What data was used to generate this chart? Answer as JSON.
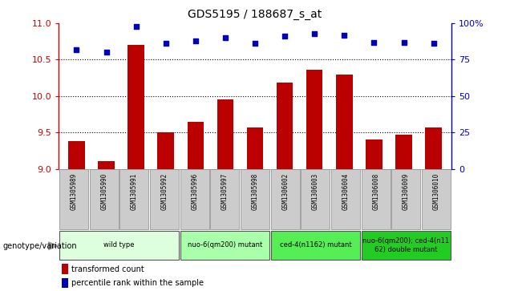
{
  "title": "GDS5195 / 188687_s_at",
  "samples": [
    "GSM1305989",
    "GSM1305990",
    "GSM1305991",
    "GSM1305992",
    "GSM1305996",
    "GSM1305997",
    "GSM1305998",
    "GSM1306002",
    "GSM1306003",
    "GSM1306004",
    "GSM1306008",
    "GSM1306009",
    "GSM1306010"
  ],
  "transformed_count": [
    9.38,
    9.1,
    10.7,
    9.5,
    9.65,
    9.95,
    9.57,
    10.18,
    10.36,
    10.3,
    9.4,
    9.47,
    9.57
  ],
  "percentile_rank": [
    82,
    80,
    98,
    86,
    88,
    90,
    86,
    91,
    93,
    92,
    87,
    87,
    86
  ],
  "ymin": 9.0,
  "ymax": 11.0,
  "yticks": [
    9.0,
    9.5,
    10.0,
    10.5,
    11.0
  ],
  "right_yticks": [
    0,
    25,
    50,
    75,
    100
  ],
  "grid_lines": [
    9.5,
    10.0,
    10.5
  ],
  "bar_color": "#bb0000",
  "dot_color": "#0000bb",
  "left_axis_color": "#cc0000",
  "right_axis_color": "#0000cc",
  "groups": [
    {
      "label": "wild type",
      "start": 0,
      "end": 4,
      "color": "#ddffdd"
    },
    {
      "label": "nuo-6(qm200) mutant",
      "start": 4,
      "end": 7,
      "color": "#aaffaa"
    },
    {
      "label": "ced-4(n1162) mutant",
      "start": 7,
      "end": 10,
      "color": "#55ee55"
    },
    {
      "label": "nuo-6(qm200); ced-4(n11\n62) double mutant",
      "start": 10,
      "end": 13,
      "color": "#22cc22"
    }
  ],
  "xlabel_genotype": "genotype/variation",
  "legend_bar_label": "transformed count",
  "legend_dot_label": "percentile rank within the sample",
  "sample_bg_color": "#cccccc",
  "plot_bg_color": "#ffffff"
}
